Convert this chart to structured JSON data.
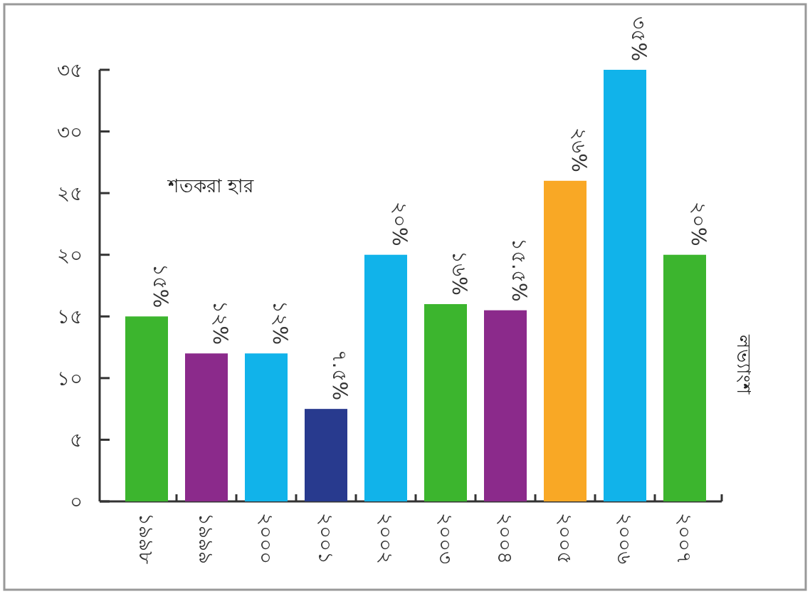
{
  "chart_data": {
    "type": "bar",
    "ylabel": "শতকরা হার",
    "annotations": [
      "লভ্যাংশ"
    ],
    "categories": [
      "১৯৯৮",
      "১৯৯৯",
      "২০০০",
      "২০০১",
      "২০০২",
      "২০০৩",
      "২০০৪",
      "২০০৫",
      "২০০৬",
      "২০০৭"
    ],
    "values": [
      15,
      12,
      12,
      7.5,
      20,
      16,
      15.5,
      26,
      35,
      20
    ],
    "value_labels": [
      "১৫%",
      "১২%",
      "১২%",
      "৭.৫%",
      "২০%",
      "১৬%",
      "১৫.৫%",
      "২৬%",
      "৩৫%",
      "২০%"
    ],
    "colors": [
      "#3cb52e",
      "#8b2a8b",
      "#11b3ea",
      "#283a8e",
      "#11b3ea",
      "#3cb52e",
      "#8b2a8b",
      "#f9a825",
      "#11b3ea",
      "#3cb52e"
    ],
    "ylim": [
      0,
      35
    ],
    "yticks": [
      {
        "value": 0,
        "label": "০"
      },
      {
        "value": 5,
        "label": "৫"
      },
      {
        "value": 10,
        "label": "১০"
      },
      {
        "value": 15,
        "label": "১৫"
      },
      {
        "value": 20,
        "label": "২০"
      },
      {
        "value": 25,
        "label": "২৫"
      },
      {
        "value": 30,
        "label": "৩০"
      },
      {
        "value": 35,
        "label": "৩৫"
      }
    ],
    "grid": false
  }
}
